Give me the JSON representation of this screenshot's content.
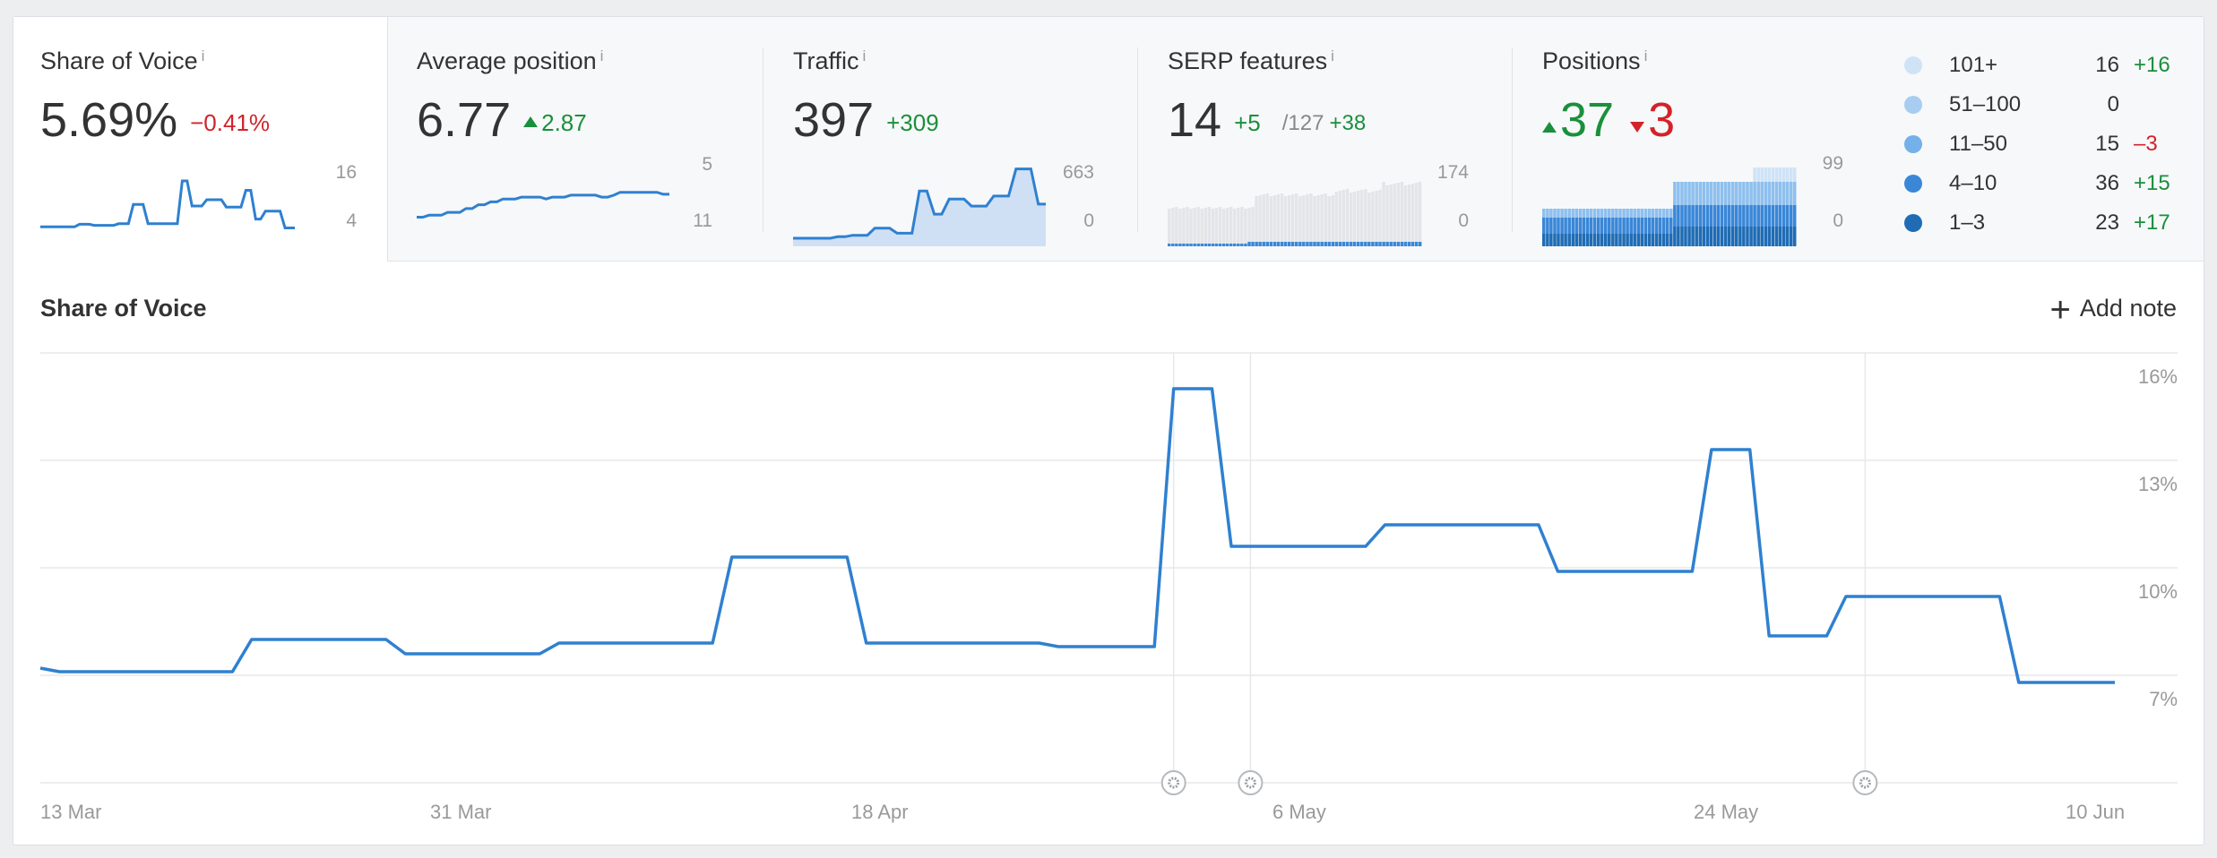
{
  "metrics": {
    "sov": {
      "title": "Share of Voice",
      "info": "i",
      "value": "5.69%",
      "delta": "−0.41%",
      "axis_top": "16",
      "axis_bottom": "4",
      "spark": [
        6,
        6,
        6,
        6,
        6,
        6,
        6,
        6,
        6.5,
        6.5,
        6.5,
        6.3,
        6.3,
        6.3,
        6.3,
        6.3,
        6.6,
        6.6,
        6.6,
        10.3,
        10.3,
        10.3,
        6.6,
        6.6,
        6.6,
        6.6,
        6.6,
        6.6,
        6.6,
        14.8,
        14.8,
        10,
        10,
        10,
        11.2,
        11.2,
        11.2,
        11.2,
        9.8,
        9.8,
        9.8,
        9.8,
        13,
        13,
        7.5,
        7.5,
        9,
        9,
        9,
        9,
        5.8,
        5.8,
        5.8
      ]
    },
    "avgpos": {
      "title": "Average position",
      "info": "i",
      "value": "6.77",
      "delta": "2.87",
      "axis_top": "5",
      "axis_bottom": "11",
      "spark": [
        10.2,
        10.2,
        10,
        10,
        10,
        9.7,
        9.7,
        9.7,
        9.3,
        9.3,
        8.9,
        8.9,
        8.6,
        8.6,
        8.3,
        8.3,
        8.3,
        8.1,
        8.1,
        8.1,
        8.1,
        8.3,
        8.1,
        8.1,
        8.1,
        7.9,
        7.9,
        7.9,
        7.9,
        7.9,
        8.1,
        8.1,
        7.9,
        7.6,
        7.6,
        7.6,
        7.6,
        7.6,
        7.6,
        7.6,
        7.8,
        7.8
      ]
    },
    "traffic": {
      "title": "Traffic",
      "info": "i",
      "value": "397",
      "delta": "+309",
      "axis_top": "663",
      "axis_bottom": "0",
      "spark": [
        80,
        80,
        80,
        80,
        80,
        80,
        95,
        95,
        110,
        110,
        110,
        180,
        180,
        180,
        130,
        130,
        130,
        550,
        550,
        320,
        320,
        470,
        470,
        470,
        400,
        400,
        400,
        500,
        500,
        500,
        770,
        770,
        770,
        420,
        420
      ]
    },
    "serp": {
      "title": "SERP features",
      "info": "i",
      "value": "14",
      "delta": "+5",
      "sub": "/127",
      "sub_delta": "+38",
      "axis_top": "174",
      "axis_bottom": "0"
    },
    "positions": {
      "title": "Positions",
      "info": "i",
      "up": "37",
      "down": "3",
      "axis_top": "99",
      "axis_bottom": "0"
    }
  },
  "legend": [
    {
      "name": "101+",
      "value": "16",
      "delta": "+16",
      "color": "#cfe3f7",
      "delta_type": "pos"
    },
    {
      "name": "51–100",
      "value": "0",
      "delta": "",
      "color": "#a7cdf1",
      "delta_type": "pos"
    },
    {
      "name": "11–50",
      "value": "15",
      "delta": "–3",
      "color": "#74b0ea",
      "delta_type": "neg"
    },
    {
      "name": "4–10",
      "value": "36",
      "delta": "+15",
      "color": "#3a87d8",
      "delta_type": "pos"
    },
    {
      "name": "1–3",
      "value": "23",
      "delta": "+17",
      "color": "#1f6cb5",
      "delta_type": "pos"
    }
  ],
  "section_title": "Share of Voice",
  "add_note": "Add note",
  "chart_data": {
    "type": "line",
    "title": "Share of Voice",
    "x_ticks": [
      "13 Mar",
      "31 Mar",
      "18 Apr",
      "6 May",
      "24 May",
      "10 Jun"
    ],
    "y_ticks": [
      "16%",
      "13%",
      "10%",
      "7%"
    ],
    "ylim": [
      4,
      16
    ],
    "series": [
      {
        "values": [
          7.2,
          7.1,
          7.1,
          7.1,
          7.1,
          7.1,
          7.1,
          7.1,
          7.1,
          7.1,
          7.1,
          8.0,
          8.0,
          8.0,
          8.0,
          8.0,
          8.0,
          8.0,
          8.0,
          7.6,
          7.6,
          7.6,
          7.6,
          7.6,
          7.6,
          7.6,
          7.6,
          7.9,
          7.9,
          7.9,
          7.9,
          7.9,
          7.9,
          7.9,
          7.9,
          7.9,
          10.3,
          10.3,
          10.3,
          10.3,
          10.3,
          10.3,
          10.3,
          7.9,
          7.9,
          7.9,
          7.9,
          7.9,
          7.9,
          7.9,
          7.9,
          7.9,
          7.9,
          7.8,
          7.8,
          7.8,
          7.8,
          7.8,
          7.8,
          15.0,
          15.0,
          15.0,
          10.6,
          10.6,
          10.6,
          10.6,
          10.6,
          10.6,
          10.6,
          10.6,
          11.2,
          11.2,
          11.2,
          11.2,
          11.2,
          11.2,
          11.2,
          11.2,
          11.2,
          9.9,
          9.9,
          9.9,
          9.9,
          9.9,
          9.9,
          9.9,
          9.9,
          13.3,
          13.3,
          13.3,
          8.1,
          8.1,
          8.1,
          8.1,
          9.2,
          9.2,
          9.2,
          9.2,
          9.2,
          9.2,
          9.2,
          9.2,
          9.2,
          6.8,
          6.8,
          6.8,
          6.8,
          6.8,
          6.8
        ]
      }
    ],
    "notes_at_index": [
      59,
      63,
      95
    ]
  }
}
